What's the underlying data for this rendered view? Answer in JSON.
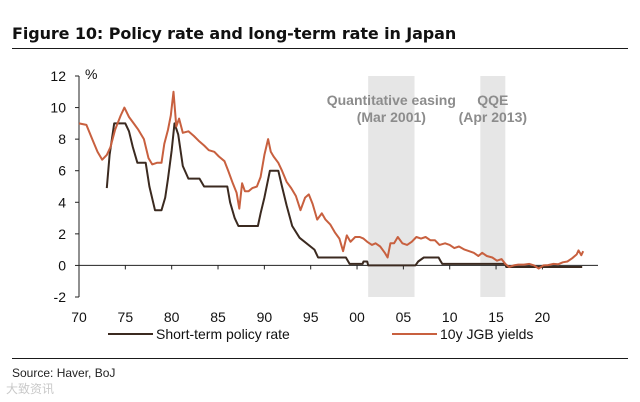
{
  "title": "Figure 10: Policy rate and long-term rate in Japan",
  "source": "Source: Haver, BoJ",
  "watermark": "大致资讯",
  "chart_data": {
    "type": "line",
    "xlim": [
      1970,
      2026
    ],
    "ylim": [
      -2,
      12
    ],
    "y_unit_label": "%",
    "xticks": [
      1970,
      1975,
      1980,
      1985,
      1990,
      1995,
      2000,
      2005,
      2010,
      2015,
      2020
    ],
    "xtick_labels": [
      "70",
      "75",
      "80",
      "85",
      "90",
      "95",
      "00",
      "05",
      "10",
      "15",
      "20"
    ],
    "yticks": [
      -2,
      0,
      2,
      4,
      6,
      8,
      10,
      12
    ],
    "ytick_labels": [
      "-2",
      "0",
      "2",
      "4",
      "6",
      "8",
      "10",
      "12"
    ],
    "grid": false,
    "legend_position": "bottom",
    "shaded_periods": [
      {
        "label_lines": [
          "Quantitative easing",
          "(Mar 2001)"
        ],
        "start": 2001.2,
        "end": 2006.2
      },
      {
        "label_lines": [
          "QQE",
          "(Apr 2013)"
        ],
        "start": 2013.3,
        "end": 2016.0
      }
    ],
    "series": [
      {
        "name": "Short-term policy rate",
        "color": "#3b2a20",
        "points": [
          [
            1973.0,
            4.9
          ],
          [
            1973.3,
            7.0
          ],
          [
            1973.8,
            9.0
          ],
          [
            1975.0,
            9.0
          ],
          [
            1975.4,
            8.5
          ],
          [
            1975.8,
            7.5
          ],
          [
            1976.3,
            6.5
          ],
          [
            1977.2,
            6.5
          ],
          [
            1977.6,
            5.0
          ],
          [
            1978.2,
            3.5
          ],
          [
            1978.9,
            3.5
          ],
          [
            1979.3,
            4.3
          ],
          [
            1979.6,
            5.5
          ],
          [
            1980.0,
            7.3
          ],
          [
            1980.3,
            9.0
          ],
          [
            1980.7,
            8.3
          ],
          [
            1981.2,
            6.3
          ],
          [
            1981.8,
            5.5
          ],
          [
            1983.0,
            5.5
          ],
          [
            1983.5,
            5.0
          ],
          [
            1986.0,
            5.0
          ],
          [
            1986.3,
            4.0
          ],
          [
            1986.8,
            3.0
          ],
          [
            1987.2,
            2.5
          ],
          [
            1989.3,
            2.5
          ],
          [
            1989.6,
            3.3
          ],
          [
            1990.0,
            4.3
          ],
          [
            1990.6,
            6.0
          ],
          [
            1991.5,
            6.0
          ],
          [
            1991.9,
            5.0
          ],
          [
            1992.4,
            3.8
          ],
          [
            1993.0,
            2.5
          ],
          [
            1993.8,
            1.75
          ],
          [
            1995.4,
            1.0
          ],
          [
            1995.8,
            0.5
          ],
          [
            1998.8,
            0.5
          ],
          [
            1999.2,
            0.1
          ],
          [
            2000.6,
            0.1
          ],
          [
            2000.7,
            0.25
          ],
          [
            2001.1,
            0.25
          ],
          [
            2001.2,
            0.0
          ],
          [
            2006.3,
            0.0
          ],
          [
            2006.6,
            0.25
          ],
          [
            2007.2,
            0.5
          ],
          [
            2008.8,
            0.5
          ],
          [
            2009.0,
            0.3
          ],
          [
            2009.2,
            0.1
          ],
          [
            2016.0,
            0.1
          ],
          [
            2016.1,
            -0.1
          ],
          [
            2024.0,
            -0.1
          ],
          [
            2024.3,
            -0.1
          ]
        ]
      },
      {
        "name": "10y JGB yields",
        "color": "#c8603f",
        "points": [
          [
            1970.0,
            9.0
          ],
          [
            1970.8,
            8.9
          ],
          [
            1971.5,
            7.9
          ],
          [
            1972.0,
            7.2
          ],
          [
            1972.5,
            6.7
          ],
          [
            1973.0,
            7.0
          ],
          [
            1973.4,
            7.5
          ],
          [
            1973.9,
            8.6
          ],
          [
            1974.5,
            9.5
          ],
          [
            1974.9,
            10.0
          ],
          [
            1975.4,
            9.4
          ],
          [
            1975.9,
            9.0
          ],
          [
            1976.4,
            8.6
          ],
          [
            1977.0,
            8.0
          ],
          [
            1977.5,
            6.8
          ],
          [
            1977.9,
            6.4
          ],
          [
            1978.4,
            6.5
          ],
          [
            1978.9,
            6.5
          ],
          [
            1979.2,
            7.7
          ],
          [
            1979.6,
            8.6
          ],
          [
            1979.9,
            9.5
          ],
          [
            1980.2,
            11.0
          ],
          [
            1980.5,
            8.8
          ],
          [
            1980.8,
            9.3
          ],
          [
            1981.2,
            8.4
          ],
          [
            1981.8,
            8.5
          ],
          [
            1982.4,
            8.2
          ],
          [
            1982.9,
            7.9
          ],
          [
            1983.5,
            7.6
          ],
          [
            1984.0,
            7.3
          ],
          [
            1984.6,
            7.2
          ],
          [
            1985.1,
            6.9
          ],
          [
            1985.7,
            6.6
          ],
          [
            1986.1,
            6.0
          ],
          [
            1986.6,
            5.2
          ],
          [
            1987.0,
            4.6
          ],
          [
            1987.3,
            3.6
          ],
          [
            1987.6,
            5.2
          ],
          [
            1987.9,
            4.7
          ],
          [
            1988.3,
            4.7
          ],
          [
            1988.7,
            4.9
          ],
          [
            1989.2,
            5.0
          ],
          [
            1989.6,
            5.6
          ],
          [
            1990.0,
            7.0
          ],
          [
            1990.4,
            8.0
          ],
          [
            1990.7,
            7.2
          ],
          [
            1991.0,
            6.9
          ],
          [
            1991.5,
            6.5
          ],
          [
            1991.9,
            6.0
          ],
          [
            1992.4,
            5.3
          ],
          [
            1992.9,
            4.9
          ],
          [
            1993.4,
            4.4
          ],
          [
            1993.9,
            3.5
          ],
          [
            1994.4,
            4.3
          ],
          [
            1994.8,
            4.5
          ],
          [
            1995.2,
            3.9
          ],
          [
            1995.7,
            2.9
          ],
          [
            1996.2,
            3.3
          ],
          [
            1996.6,
            2.9
          ],
          [
            1997.1,
            2.6
          ],
          [
            1997.6,
            2.1
          ],
          [
            1998.1,
            1.7
          ],
          [
            1998.5,
            0.9
          ],
          [
            1998.9,
            1.9
          ],
          [
            1999.3,
            1.5
          ],
          [
            1999.8,
            1.8
          ],
          [
            2000.3,
            1.8
          ],
          [
            2000.7,
            1.7
          ],
          [
            2001.1,
            1.5
          ],
          [
            2001.6,
            1.3
          ],
          [
            2002.0,
            1.4
          ],
          [
            2002.5,
            1.2
          ],
          [
            2003.0,
            0.8
          ],
          [
            2003.3,
            0.5
          ],
          [
            2003.6,
            1.4
          ],
          [
            2004.0,
            1.4
          ],
          [
            2004.4,
            1.8
          ],
          [
            2004.9,
            1.4
          ],
          [
            2005.4,
            1.3
          ],
          [
            2005.9,
            1.5
          ],
          [
            2006.4,
            1.8
          ],
          [
            2006.9,
            1.7
          ],
          [
            2007.4,
            1.8
          ],
          [
            2007.9,
            1.6
          ],
          [
            2008.4,
            1.6
          ],
          [
            2008.9,
            1.3
          ],
          [
            2009.5,
            1.4
          ],
          [
            2010.0,
            1.3
          ],
          [
            2010.5,
            1.1
          ],
          [
            2011.0,
            1.2
          ],
          [
            2011.6,
            1.0
          ],
          [
            2012.1,
            0.9
          ],
          [
            2012.6,
            0.8
          ],
          [
            2013.1,
            0.6
          ],
          [
            2013.5,
            0.8
          ],
          [
            2014.0,
            0.6
          ],
          [
            2014.6,
            0.5
          ],
          [
            2015.1,
            0.3
          ],
          [
            2015.6,
            0.4
          ],
          [
            2016.0,
            0.1
          ],
          [
            2016.4,
            -0.1
          ],
          [
            2016.9,
            0.0
          ],
          [
            2017.4,
            0.05
          ],
          [
            2018.0,
            0.05
          ],
          [
            2018.6,
            0.1
          ],
          [
            2019.1,
            0.0
          ],
          [
            2019.6,
            -0.2
          ],
          [
            2020.1,
            0.0
          ],
          [
            2020.6,
            0.02
          ],
          [
            2021.2,
            0.1
          ],
          [
            2021.7,
            0.07
          ],
          [
            2022.2,
            0.2
          ],
          [
            2022.7,
            0.25
          ],
          [
            2023.2,
            0.45
          ],
          [
            2023.7,
            0.7
          ],
          [
            2023.9,
            0.95
          ],
          [
            2024.2,
            0.65
          ],
          [
            2024.4,
            0.9
          ]
        ]
      }
    ]
  }
}
